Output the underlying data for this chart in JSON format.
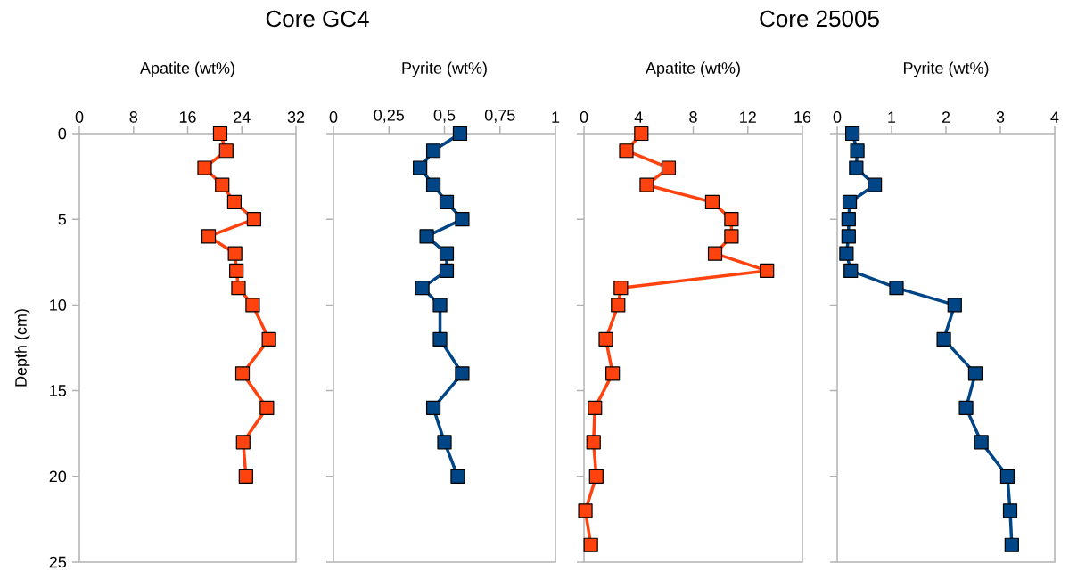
{
  "chart_data": [
    {
      "type": "line",
      "title": "Core GC4",
      "xlabel": "Apatite (wt%)",
      "ylabel": "Depth (cm)",
      "xlim": [
        0,
        32
      ],
      "xticks": [
        0,
        8,
        16,
        24,
        32
      ],
      "ylim": [
        25,
        0
      ],
      "yticks": [
        0,
        5,
        10,
        15,
        20,
        25
      ],
      "marker": "square",
      "line_style": "solid",
      "grid": false,
      "series": [
        {
          "color": "#ff420e",
          "x": [
            20.8,
            21.7,
            18.5,
            21.1,
            22.9,
            25.8,
            19.1,
            23.0,
            23.2,
            23.5,
            25.6,
            28.0,
            24.1,
            27.7,
            24.2,
            24.6
          ],
          "values": [
            0,
            1,
            2,
            3,
            4,
            5,
            6,
            7,
            8,
            9,
            10,
            12,
            14,
            16,
            18,
            20
          ]
        }
      ]
    },
    {
      "type": "line",
      "xlabel": "Pyrite (wt%)",
      "xlim": [
        0,
        1
      ],
      "xticks": [
        0,
        {
          "value": 0.25,
          "label": "0,25"
        },
        {
          "value": 0.5,
          "label": "0,5"
        },
        {
          "value": 0.75,
          "label": "0,75"
        },
        1
      ],
      "ylim": [
        25,
        0
      ],
      "yticks": [
        0,
        5,
        10,
        15,
        20,
        25
      ],
      "tick_labels": "x",
      "marker": "square",
      "line_style": "solid",
      "grid": false,
      "series": [
        {
          "color": "#004586",
          "x": [
            0.57,
            0.45,
            0.39,
            0.45,
            0.51,
            0.58,
            0.42,
            0.51,
            0.51,
            0.4,
            0.48,
            0.48,
            0.58,
            0.45,
            0.5,
            0.56
          ],
          "values": [
            0,
            1,
            2,
            3,
            4,
            5,
            6,
            7,
            8,
            9,
            10,
            12,
            14,
            16,
            18,
            20
          ]
        }
      ]
    },
    {
      "type": "line",
      "title": "Core 25005",
      "xlabel": "Apatite (wt%)",
      "xlim": [
        0,
        16
      ],
      "xticks": [
        0,
        4,
        8,
        12,
        16
      ],
      "ylim": [
        25,
        0
      ],
      "yticks": [
        0,
        5,
        10,
        15,
        20,
        25
      ],
      "tick_labels": "x",
      "marker": "square",
      "line_style": "solid",
      "grid": false,
      "series": [
        {
          "color": "#ff420e",
          "x": [
            4.2,
            3.1,
            6.2,
            4.6,
            9.4,
            10.8,
            10.8,
            9.6,
            13.4,
            2.7,
            2.5,
            1.6,
            2.1,
            0.8,
            0.7,
            0.9,
            0.1,
            0.5
          ],
          "values": [
            0,
            1,
            2,
            3,
            4,
            5,
            6,
            7,
            8,
            9,
            10,
            12,
            14,
            16,
            18,
            20,
            22,
            24
          ]
        }
      ]
    },
    {
      "type": "line",
      "xlabel": "Pyrite (wt%)",
      "xlim": [
        0,
        4
      ],
      "xticks": [
        0,
        1,
        2,
        3,
        4
      ],
      "ylim": [
        25,
        0
      ],
      "yticks": [
        0,
        5,
        10,
        15,
        20,
        25
      ],
      "tick_labels": "x",
      "marker": "square",
      "line_style": "solid",
      "grid": false,
      "series": [
        {
          "color": "#004586",
          "x": [
            0.28,
            0.37,
            0.35,
            0.69,
            0.23,
            0.21,
            0.21,
            0.17,
            0.25,
            1.09,
            2.16,
            1.96,
            2.54,
            2.37,
            2.65,
            3.13,
            3.18,
            3.21
          ],
          "values": [
            0,
            1,
            2,
            3,
            4,
            5,
            6,
            7,
            8,
            9,
            10,
            12,
            14,
            16,
            18,
            20,
            22,
            24
          ]
        }
      ]
    }
  ]
}
